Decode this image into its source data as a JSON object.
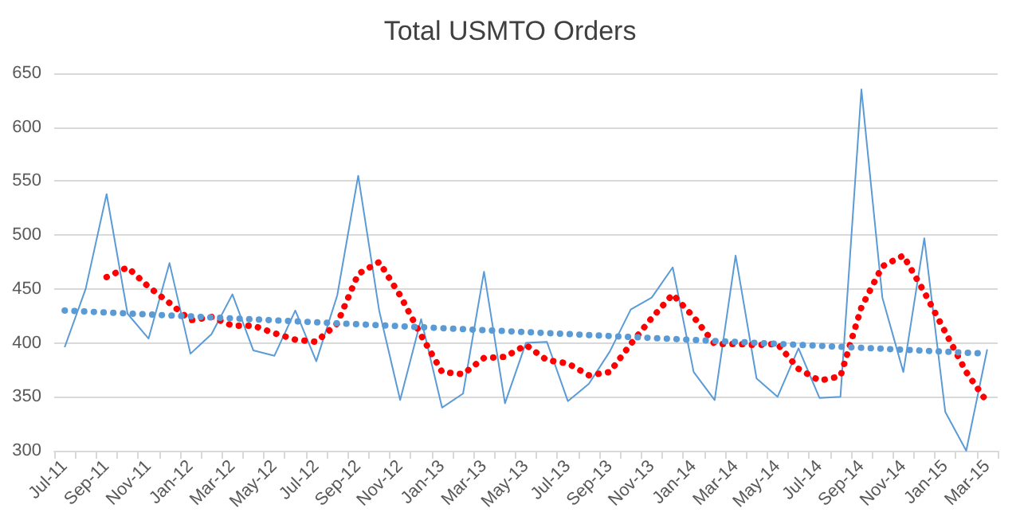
{
  "chart_data": {
    "type": "line",
    "title": "Total USMTO Orders",
    "categories": [
      "Jul-11",
      null,
      "Sep-11",
      null,
      "Nov-11",
      null,
      "Jan-12",
      null,
      "Mar-12",
      null,
      "May-12",
      null,
      "Jul-12",
      null,
      "Sep-12",
      null,
      "Nov-12",
      null,
      "Jan-13",
      null,
      "Mar-13",
      null,
      "May-13",
      null,
      "Jul-13",
      null,
      "Sep-13",
      null,
      "Nov-13",
      null,
      "Jan-14",
      null,
      "Mar-14",
      null,
      "May-14",
      null,
      "Jul-14",
      null,
      "Sep-14",
      null,
      "Nov-14",
      null,
      "Jan-15",
      null,
      "Mar-15"
    ],
    "series": [
      {
        "color": "#5b9bd5",
        "line_style": "solid",
        "values": [
          396,
          450,
          538,
          427,
          404,
          474,
          390,
          408,
          445,
          393,
          388,
          430,
          383,
          444,
          555,
          430,
          347,
          422,
          340,
          353,
          466,
          344,
          400,
          401,
          346,
          362,
          392,
          431,
          442,
          470,
          373,
          347,
          481,
          367,
          350,
          395,
          349,
          350,
          635,
          442,
          373,
          497,
          336,
          300,
          394
        ]
      },
      {
        "color": "#ff0000",
        "line_style": "dotted",
        "values": [
          null,
          null,
          461,
          470,
          452,
          437,
          421,
          424,
          416,
          416,
          409,
          403,
          401,
          418,
          464,
          475,
          444,
          407,
          373,
          371,
          386,
          387,
          398,
          384,
          381,
          370,
          373,
          399,
          423,
          445,
          424,
          399,
          399,
          398,
          399,
          376,
          365,
          369,
          433,
          471,
          481,
          447,
          410,
          373,
          345
        ]
      },
      {
        "color": "#5b9bd5",
        "line_style": "dotted",
        "x": [
          "Jul-11",
          "Mar-15"
        ],
        "values": [
          430,
          390
        ]
      }
    ],
    "ylim": [
      300,
      650
    ],
    "yticks": [
      300,
      350,
      400,
      450,
      500,
      550,
      600,
      650
    ],
    "grid": "y",
    "marker": "none"
  }
}
